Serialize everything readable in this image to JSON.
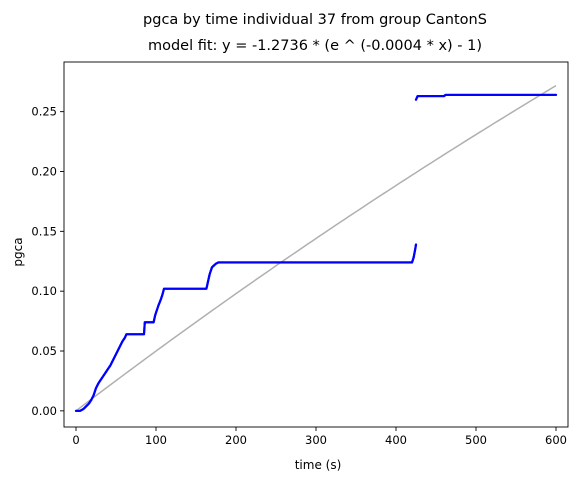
{
  "chart_data": {
    "type": "scatter",
    "title": "pgca by time individual 37 from group CantonS",
    "subtitle": "model fit: y = -1.2736 * (e ^ (-0.0004 * x) - 1)",
    "xlabel": "time (s)",
    "ylabel": "pgca",
    "xlim": [
      -15,
      615
    ],
    "ylim": [
      -0.0135,
      0.2915
    ],
    "xticks": [
      0,
      100,
      200,
      300,
      400,
      500,
      600
    ],
    "yticks": [
      0.0,
      0.05,
      0.1,
      0.15,
      0.2,
      0.25
    ],
    "xtick_labels": [
      "0",
      "100",
      "200",
      "300",
      "400",
      "500",
      "600"
    ],
    "ytick_labels": [
      "0.00",
      "0.05",
      "0.10",
      "0.15",
      "0.20",
      "0.25"
    ],
    "grid": false,
    "series": [
      {
        "kind": "scatter",
        "color": "#0000ff",
        "segments": [
          [
            [
              0,
              0.0
            ],
            [
              5,
              0.0
            ],
            [
              8,
              0.001
            ],
            [
              10,
              0.002
            ],
            [
              13,
              0.004
            ],
            [
              16,
              0.006
            ],
            [
              19,
              0.009
            ],
            [
              22,
              0.013
            ],
            [
              25,
              0.019
            ],
            [
              28,
              0.023
            ],
            [
              31,
              0.026
            ],
            [
              34,
              0.029
            ],
            [
              37,
              0.032
            ],
            [
              40,
              0.035
            ],
            [
              43,
              0.038
            ],
            [
              46,
              0.042
            ],
            [
              49,
              0.046
            ],
            [
              52,
              0.05
            ],
            [
              55,
              0.054
            ],
            [
              58,
              0.058
            ],
            [
              61,
              0.061
            ],
            [
              63,
              0.064
            ],
            [
              85,
              0.064
            ],
            [
              86,
              0.074
            ],
            [
              97,
              0.074
            ],
            [
              99,
              0.08
            ],
            [
              103,
              0.088
            ],
            [
              106,
              0.093
            ],
            [
              108,
              0.097
            ],
            [
              110,
              0.102
            ],
            [
              163,
              0.102
            ],
            [
              165,
              0.108
            ],
            [
              167,
              0.114
            ],
            [
              170,
              0.12
            ],
            [
              175,
              0.123
            ],
            [
              178,
              0.124
            ],
            [
              420,
              0.124
            ],
            [
              422,
              0.128
            ],
            [
              424,
              0.135
            ],
            [
              425,
              0.139
            ]
          ],
          [
            [
              425,
              0.26
            ],
            [
              427,
              0.263
            ],
            [
              460,
              0.263
            ],
            [
              462,
              0.264
            ],
            [
              600,
              0.264
            ]
          ]
        ]
      },
      {
        "kind": "line",
        "color": "#b0b0b0",
        "model": {
          "a": -1.2736,
          "b": -0.0004
        },
        "x_range": [
          0,
          600
        ]
      }
    ]
  }
}
